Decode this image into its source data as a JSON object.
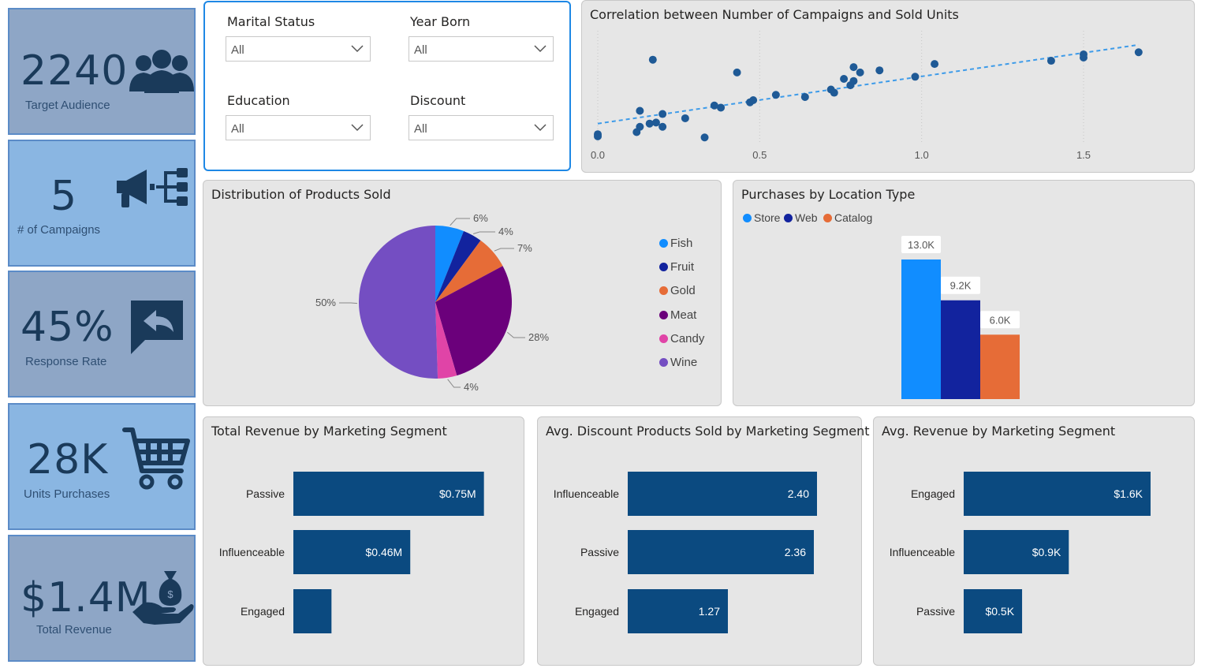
{
  "kpis": [
    {
      "value": "2240",
      "label": "Target Audience",
      "icon": "people-icon"
    },
    {
      "value": "5",
      "label": "# of Campaigns",
      "icon": "megaphone-icon"
    },
    {
      "value": "45%",
      "label": "Response Rate",
      "icon": "reply-icon"
    },
    {
      "value": "28K",
      "label": "Units Purchases",
      "icon": "cart-icon"
    },
    {
      "value": "$1.4M",
      "label": "Total Revenue",
      "icon": "money-bag-icon"
    }
  ],
  "slicers": [
    {
      "label": "Marital Status",
      "value": "All"
    },
    {
      "label": "Year Born",
      "value": "All"
    },
    {
      "label": "Education",
      "value": "All"
    },
    {
      "label": "Discount",
      "value": "All"
    }
  ],
  "colors": {
    "navy_bar": "#0b4a80",
    "store": "#118dff",
    "web": "#12239e",
    "catalog": "#e66c37",
    "scatter_point": "#1f5a96",
    "trend": "#3d9be9"
  },
  "chart_data": [
    {
      "id": "scatter",
      "type": "scatter",
      "title": "Correlation between Number of Campaigns and Sold Units",
      "xticks": [
        "0.0",
        "0.5",
        "1.0",
        "1.5"
      ],
      "xlim": [
        0,
        1.7
      ],
      "ylim": [
        0,
        1
      ],
      "points": [
        [
          0.0,
          0.06
        ],
        [
          0.0,
          0.08
        ],
        [
          0.12,
          0.1
        ],
        [
          0.13,
          0.15
        ],
        [
          0.16,
          0.18
        ],
        [
          0.13,
          0.3
        ],
        [
          0.17,
          0.78
        ],
        [
          0.18,
          0.19
        ],
        [
          0.2,
          0.15
        ],
        [
          0.2,
          0.27
        ],
        [
          0.27,
          0.23
        ],
        [
          0.33,
          0.05
        ],
        [
          0.36,
          0.35
        ],
        [
          0.38,
          0.33
        ],
        [
          0.43,
          0.66
        ],
        [
          0.47,
          0.38
        ],
        [
          0.48,
          0.4
        ],
        [
          0.55,
          0.45
        ],
        [
          0.64,
          0.43
        ],
        [
          0.72,
          0.5
        ],
        [
          0.73,
          0.47
        ],
        [
          0.76,
          0.6
        ],
        [
          0.78,
          0.54
        ],
        [
          0.79,
          0.58
        ],
        [
          0.79,
          0.71
        ],
        [
          0.81,
          0.66
        ],
        [
          0.87,
          0.68
        ],
        [
          0.98,
          0.62
        ],
        [
          1.04,
          0.74
        ],
        [
          1.4,
          0.77
        ],
        [
          1.5,
          0.8
        ],
        [
          1.5,
          0.83
        ],
        [
          1.67,
          0.85
        ]
      ],
      "trendline": [
        [
          0.0,
          0.18
        ],
        [
          1.67,
          0.92
        ]
      ]
    },
    {
      "id": "pie",
      "type": "pie",
      "title": "Distribution of Products Sold",
      "labels": [
        "Fish",
        "Fruit",
        "Gold",
        "Meat",
        "Candy",
        "Wine"
      ],
      "values": [
        6,
        4,
        7,
        28,
        4,
        50
      ],
      "data_labels": [
        "6%",
        "4%",
        "7%",
        "28%",
        "4%",
        "50%"
      ],
      "colors": [
        "#118dff",
        "#12239e",
        "#e66c37",
        "#6b007b",
        "#e044a7",
        "#744ec2"
      ]
    },
    {
      "id": "location",
      "type": "bar",
      "title": "Purchases by Location Type",
      "categories": [
        "Store",
        "Web",
        "Catalog"
      ],
      "values": [
        13.0,
        9.2,
        6.0
      ],
      "data_labels": [
        "13.0K",
        "9.2K",
        "6.0K"
      ],
      "ylim": [
        0,
        14
      ]
    },
    {
      "id": "total_revenue",
      "type": "bar",
      "title": "Total Revenue by Marketing Segment",
      "categories": [
        "Passive",
        "Influenceable",
        "Engaged"
      ],
      "values": [
        0.75,
        0.46,
        0.15
      ],
      "data_labels": [
        "$0.75M",
        "$0.46M",
        ""
      ],
      "xlim": [
        0,
        0.9
      ]
    },
    {
      "id": "avg_discount",
      "type": "bar",
      "title": "Avg. Discount Products Sold by Marketing Segment",
      "categories": [
        "Influenceable",
        "Passive",
        "Engaged"
      ],
      "values": [
        2.4,
        2.36,
        1.27
      ],
      "data_labels": [
        "2.40",
        "2.36",
        "1.27"
      ],
      "xlim": [
        0,
        2.9
      ]
    },
    {
      "id": "avg_revenue",
      "type": "bar",
      "title": "Avg. Revenue by Marketing Segment",
      "categories": [
        "Engaged",
        "Influenceable",
        "Passive"
      ],
      "values": [
        1.6,
        0.9,
        0.5
      ],
      "data_labels": [
        "$1.6K",
        "$0.9K",
        "$0.5K"
      ],
      "xlim": [
        0,
        1.85
      ]
    }
  ]
}
